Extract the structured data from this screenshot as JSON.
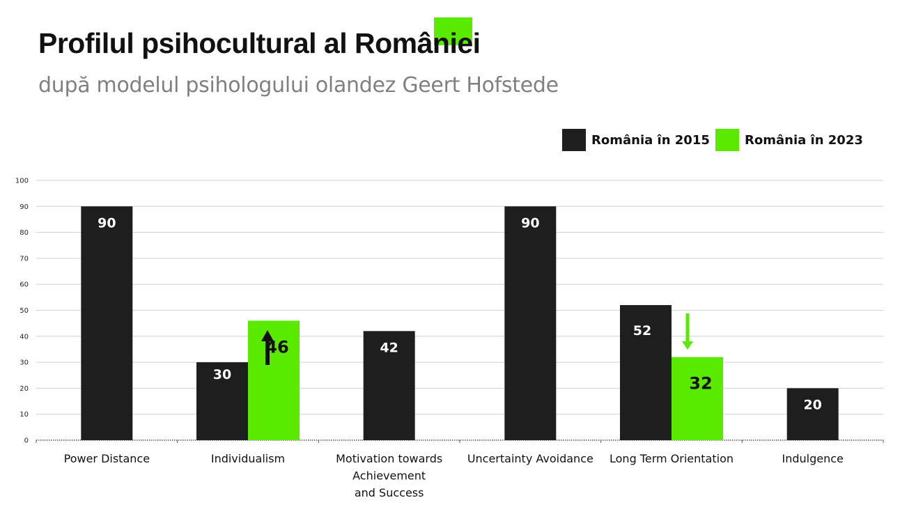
{
  "header": {
    "title": "Profilul psihocultural al României",
    "subtitle": "după modelul psihologului olandez Geert Hofstede"
  },
  "colors": {
    "series_2015": "#1e1e1e",
    "series_2023": "#5aea00",
    "grid": "#cfcfcf",
    "text": "#111111",
    "subtitle": "#808080"
  },
  "legend": {
    "items": [
      {
        "label": "România în 2015",
        "color": "#1e1e1e"
      },
      {
        "label": "România în 2023",
        "color": "#5aea00"
      }
    ]
  },
  "chart_data": {
    "type": "bar",
    "title": "Profilul psihocultural al României",
    "subtitle": "după modelul psihologului olandez Geert Hofstede",
    "ylim": [
      0,
      100
    ],
    "yticks": [
      0,
      10,
      20,
      30,
      40,
      50,
      60,
      70,
      80,
      90,
      100
    ],
    "grid": true,
    "legend_position": "top-right",
    "categories": [
      [
        "Power Distance"
      ],
      [
        "Individualism"
      ],
      [
        "Motivation towards",
        "Achievement",
        "and Success"
      ],
      [
        "Uncertainty Avoidance"
      ],
      [
        "Long Term Orientation"
      ],
      [
        "Indulgence"
      ]
    ],
    "series": [
      {
        "name": "România în 2015",
        "values": [
          90,
          30,
          42,
          90,
          52,
          20
        ]
      },
      {
        "name": "România în 2023",
        "values": [
          null,
          46,
          null,
          null,
          32,
          null
        ]
      }
    ],
    "annotations": [
      {
        "category_index": 1,
        "direction": "up",
        "from": 30,
        "to": 46
      },
      {
        "category_index": 4,
        "direction": "down",
        "from": 52,
        "to": 32
      }
    ]
  }
}
